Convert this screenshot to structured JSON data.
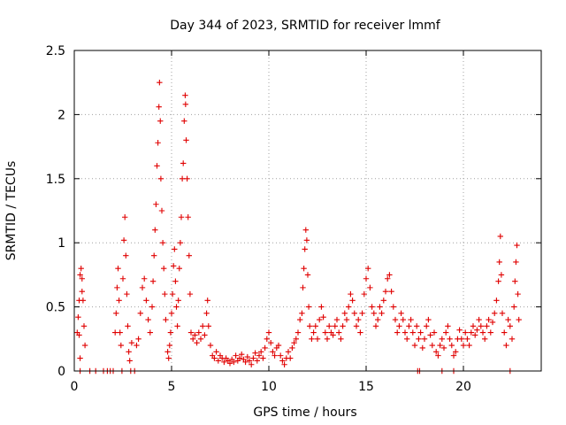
{
  "chart_data": {
    "type": "scatter",
    "title": "Day 344 of 2023, SRMTID for receiver lmmf",
    "xlabel": "GPS time / hours",
    "ylabel": "SRMTID / TECUs",
    "xlim": [
      0,
      24
    ],
    "ylim": [
      0,
      2.5
    ],
    "xticks": [
      0,
      5,
      10,
      15,
      20
    ],
    "xtick_labels": [
      "0",
      "5",
      "10",
      "15",
      "20"
    ],
    "yticks": [
      0,
      0.5,
      1,
      1.5,
      2,
      2.5
    ],
    "ytick_labels": [
      "0",
      "0.5",
      "1",
      "1.5",
      "2",
      "2.5"
    ],
    "grid": true,
    "marker": "+",
    "color": "#e00000",
    "series": [
      {
        "name": "SRMTID",
        "points": [
          [
            0.15,
            0.3
          ],
          [
            0.2,
            0.42
          ],
          [
            0.25,
            0.55
          ],
          [
            0.3,
            0.75
          ],
          [
            0.35,
            0.8
          ],
          [
            0.4,
            0.72
          ],
          [
            0.45,
            0.55
          ],
          [
            0.5,
            0.35
          ],
          [
            0.55,
            0.2
          ],
          [
            0.3,
            0.1
          ],
          [
            0.25,
            0.28
          ],
          [
            0.4,
            0.62
          ],
          [
            0.3,
            0.0
          ],
          [
            0.8,
            0.0
          ],
          [
            1.1,
            0.0
          ],
          [
            1.5,
            0.0
          ],
          [
            1.7,
            0.0
          ],
          [
            1.85,
            0.0
          ],
          [
            2.0,
            0.0
          ],
          [
            2.45,
            0.0
          ],
          [
            2.9,
            0.0
          ],
          [
            3.1,
            0.0
          ],
          [
            2.1,
            0.3
          ],
          [
            2.15,
            0.45
          ],
          [
            2.2,
            0.65
          ],
          [
            2.25,
            0.8
          ],
          [
            2.3,
            0.55
          ],
          [
            2.35,
            0.3
          ],
          [
            2.4,
            0.2
          ],
          [
            2.5,
            0.72
          ],
          [
            2.55,
            1.02
          ],
          [
            2.6,
            1.2
          ],
          [
            2.65,
            0.9
          ],
          [
            2.7,
            0.6
          ],
          [
            2.75,
            0.35
          ],
          [
            2.8,
            0.15
          ],
          [
            2.85,
            0.08
          ],
          [
            2.95,
            0.22
          ],
          [
            3.2,
            0.2
          ],
          [
            3.3,
            0.25
          ],
          [
            3.4,
            0.45
          ],
          [
            3.5,
            0.65
          ],
          [
            3.6,
            0.72
          ],
          [
            3.7,
            0.55
          ],
          [
            3.8,
            0.4
          ],
          [
            3.9,
            0.3
          ],
          [
            4.0,
            0.5
          ],
          [
            4.05,
            0.7
          ],
          [
            4.1,
            0.9
          ],
          [
            4.15,
            1.1
          ],
          [
            4.2,
            1.3
          ],
          [
            4.25,
            1.6
          ],
          [
            4.3,
            1.78
          ],
          [
            4.35,
            2.06
          ],
          [
            4.38,
            2.25
          ],
          [
            4.42,
            1.95
          ],
          [
            4.45,
            1.5
          ],
          [
            4.5,
            1.25
          ],
          [
            4.55,
            1.0
          ],
          [
            4.6,
            0.8
          ],
          [
            4.65,
            0.6
          ],
          [
            4.7,
            0.4
          ],
          [
            4.8,
            0.15
          ],
          [
            4.85,
            0.1
          ],
          [
            4.9,
            0.2
          ],
          [
            4.95,
            0.3
          ],
          [
            5.0,
            0.45
          ],
          [
            5.05,
            0.6
          ],
          [
            5.1,
            0.82
          ],
          [
            5.15,
            0.95
          ],
          [
            5.2,
            0.7
          ],
          [
            5.25,
            0.5
          ],
          [
            5.3,
            0.35
          ],
          [
            5.35,
            0.55
          ],
          [
            5.4,
            0.8
          ],
          [
            5.45,
            1.0
          ],
          [
            5.5,
            1.2
          ],
          [
            5.55,
            1.5
          ],
          [
            5.6,
            1.62
          ],
          [
            5.65,
            1.95
          ],
          [
            5.7,
            2.15
          ],
          [
            5.72,
            2.08
          ],
          [
            5.75,
            1.8
          ],
          [
            5.8,
            1.5
          ],
          [
            5.85,
            1.2
          ],
          [
            5.9,
            0.9
          ],
          [
            5.95,
            0.6
          ],
          [
            6.0,
            0.3
          ],
          [
            6.1,
            0.25
          ],
          [
            6.2,
            0.28
          ],
          [
            6.3,
            0.22
          ],
          [
            6.4,
            0.3
          ],
          [
            6.5,
            0.25
          ],
          [
            6.6,
            0.35
          ],
          [
            6.7,
            0.28
          ],
          [
            6.8,
            0.45
          ],
          [
            6.85,
            0.55
          ],
          [
            6.9,
            0.35
          ],
          [
            7.0,
            0.2
          ],
          [
            7.1,
            0.12
          ],
          [
            7.2,
            0.1
          ],
          [
            7.3,
            0.15
          ],
          [
            7.4,
            0.08
          ],
          [
            7.5,
            0.12
          ],
          [
            7.6,
            0.1
          ],
          [
            7.7,
            0.07
          ],
          [
            7.8,
            0.1
          ],
          [
            7.9,
            0.08
          ],
          [
            8.0,
            0.06
          ],
          [
            8.1,
            0.09
          ],
          [
            8.2,
            0.07
          ],
          [
            8.3,
            0.12
          ],
          [
            8.4,
            0.08
          ],
          [
            8.5,
            0.1
          ],
          [
            8.6,
            0.13
          ],
          [
            8.7,
            0.09
          ],
          [
            8.8,
            0.07
          ],
          [
            8.9,
            0.11
          ],
          [
            9.0,
            0.08
          ],
          [
            9.1,
            0.05
          ],
          [
            9.2,
            0.1
          ],
          [
            9.3,
            0.14
          ],
          [
            9.4,
            0.08
          ],
          [
            9.5,
            0.12
          ],
          [
            9.6,
            0.15
          ],
          [
            9.7,
            0.1
          ],
          [
            9.8,
            0.18
          ],
          [
            9.9,
            0.25
          ],
          [
            10.0,
            0.3
          ],
          [
            10.1,
            0.22
          ],
          [
            10.2,
            0.15
          ],
          [
            10.3,
            0.12
          ],
          [
            10.4,
            0.18
          ],
          [
            10.5,
            0.2
          ],
          [
            10.6,
            0.12
          ],
          [
            10.7,
            0.08
          ],
          [
            10.8,
            0.05
          ],
          [
            10.9,
            0.1
          ],
          [
            11.0,
            0.15
          ],
          [
            11.1,
            0.1
          ],
          [
            11.2,
            0.18
          ],
          [
            11.3,
            0.22
          ],
          [
            11.4,
            0.25
          ],
          [
            11.5,
            0.3
          ],
          [
            11.6,
            0.4
          ],
          [
            11.7,
            0.45
          ],
          [
            11.75,
            0.65
          ],
          [
            11.8,
            0.8
          ],
          [
            11.85,
            0.95
          ],
          [
            11.9,
            1.1
          ],
          [
            11.95,
            1.02
          ],
          [
            12.0,
            0.75
          ],
          [
            12.05,
            0.5
          ],
          [
            12.1,
            0.35
          ],
          [
            12.2,
            0.25
          ],
          [
            12.3,
            0.3
          ],
          [
            12.4,
            0.35
          ],
          [
            12.5,
            0.25
          ],
          [
            12.6,
            0.4
          ],
          [
            12.7,
            0.5
          ],
          [
            12.8,
            0.42
          ],
          [
            12.9,
            0.3
          ],
          [
            13.0,
            0.25
          ],
          [
            13.1,
            0.35
          ],
          [
            13.2,
            0.3
          ],
          [
            13.3,
            0.28
          ],
          [
            13.4,
            0.35
          ],
          [
            13.5,
            0.4
          ],
          [
            13.6,
            0.3
          ],
          [
            13.7,
            0.25
          ],
          [
            13.8,
            0.35
          ],
          [
            13.9,
            0.45
          ],
          [
            14.0,
            0.4
          ],
          [
            14.1,
            0.5
          ],
          [
            14.2,
            0.6
          ],
          [
            14.3,
            0.55
          ],
          [
            14.4,
            0.45
          ],
          [
            14.5,
            0.35
          ],
          [
            14.6,
            0.4
          ],
          [
            14.7,
            0.3
          ],
          [
            14.8,
            0.45
          ],
          [
            14.9,
            0.6
          ],
          [
            15.0,
            0.72
          ],
          [
            15.1,
            0.8
          ],
          [
            15.2,
            0.65
          ],
          [
            15.3,
            0.5
          ],
          [
            15.4,
            0.45
          ],
          [
            15.5,
            0.35
          ],
          [
            15.6,
            0.4
          ],
          [
            15.7,
            0.5
          ],
          [
            15.8,
            0.45
          ],
          [
            15.9,
            0.55
          ],
          [
            16.0,
            0.62
          ],
          [
            16.1,
            0.72
          ],
          [
            16.2,
            0.75
          ],
          [
            16.3,
            0.62
          ],
          [
            16.4,
            0.5
          ],
          [
            16.5,
            0.4
          ],
          [
            16.6,
            0.3
          ],
          [
            16.7,
            0.35
          ],
          [
            16.8,
            0.45
          ],
          [
            16.9,
            0.4
          ],
          [
            17.0,
            0.3
          ],
          [
            17.1,
            0.25
          ],
          [
            17.2,
            0.35
          ],
          [
            17.3,
            0.4
          ],
          [
            17.4,
            0.3
          ],
          [
            17.5,
            0.2
          ],
          [
            17.6,
            0.35
          ],
          [
            17.7,
            0.25
          ],
          [
            17.8,
            0.3
          ],
          [
            17.9,
            0.18
          ],
          [
            18.0,
            0.25
          ],
          [
            18.1,
            0.35
          ],
          [
            18.2,
            0.4
          ],
          [
            18.3,
            0.28
          ],
          [
            18.4,
            0.2
          ],
          [
            18.5,
            0.3
          ],
          [
            18.6,
            0.15
          ],
          [
            18.7,
            0.12
          ],
          [
            18.8,
            0.2
          ],
          [
            18.9,
            0.25
          ],
          [
            19.0,
            0.18
          ],
          [
            19.1,
            0.3
          ],
          [
            19.2,
            0.35
          ],
          [
            19.3,
            0.25
          ],
          [
            19.4,
            0.2
          ],
          [
            19.5,
            0.12
          ],
          [
            19.6,
            0.15
          ],
          [
            19.7,
            0.25
          ],
          [
            19.8,
            0.32
          ],
          [
            19.9,
            0.25
          ],
          [
            20.0,
            0.2
          ],
          [
            20.1,
            0.3
          ],
          [
            20.2,
            0.25
          ],
          [
            20.3,
            0.2
          ],
          [
            20.4,
            0.3
          ],
          [
            20.5,
            0.35
          ],
          [
            20.6,
            0.28
          ],
          [
            20.7,
            0.32
          ],
          [
            20.8,
            0.4
          ],
          [
            20.9,
            0.35
          ],
          [
            21.0,
            0.3
          ],
          [
            21.1,
            0.25
          ],
          [
            21.2,
            0.35
          ],
          [
            21.3,
            0.4
          ],
          [
            21.4,
            0.3
          ],
          [
            21.5,
            0.38
          ],
          [
            21.6,
            0.45
          ],
          [
            21.7,
            0.55
          ],
          [
            21.8,
            0.7
          ],
          [
            21.85,
            0.85
          ],
          [
            21.9,
            1.05
          ],
          [
            21.95,
            0.75
          ],
          [
            22.0,
            0.45
          ],
          [
            22.1,
            0.3
          ],
          [
            22.2,
            0.2
          ],
          [
            22.3,
            0.4
          ],
          [
            22.4,
            0.35
          ],
          [
            22.5,
            0.25
          ],
          [
            22.6,
            0.5
          ],
          [
            22.65,
            0.7
          ],
          [
            22.7,
            0.85
          ],
          [
            22.75,
            0.98
          ],
          [
            22.8,
            0.6
          ],
          [
            22.85,
            0.4
          ],
          [
            17.65,
            0.0
          ],
          [
            17.75,
            0.0
          ],
          [
            18.9,
            0.0
          ],
          [
            19.5,
            0.0
          ],
          [
            22.4,
            0.0
          ]
        ]
      }
    ]
  }
}
